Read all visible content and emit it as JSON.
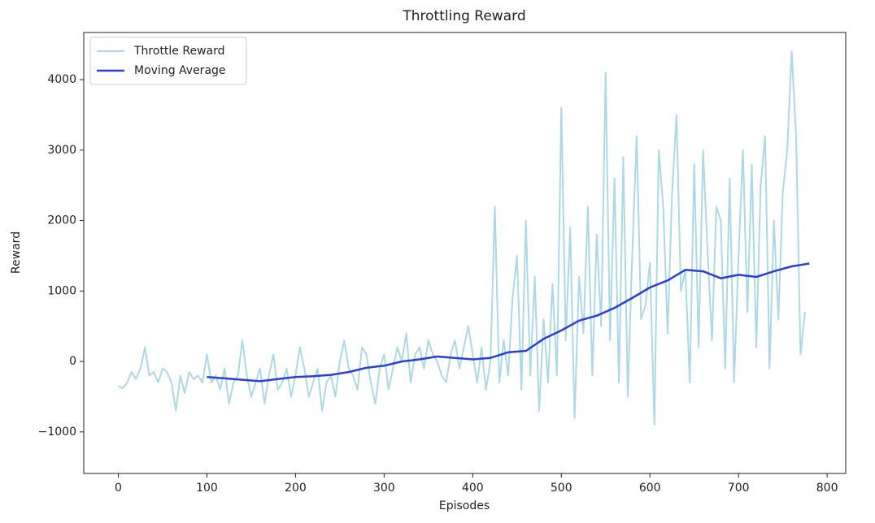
{
  "chart_data": {
    "type": "line",
    "title": "Throttling Reward",
    "x_label": "Episodes",
    "y_label": "Reward",
    "xlim": [
      -39,
      821
    ],
    "ylim": [
      -1590,
      4670
    ],
    "xticks": [
      0,
      100,
      200,
      300,
      400,
      500,
      600,
      700,
      800
    ],
    "yticks": [
      {
        "value": -1000,
        "label": "−1000"
      },
      0,
      1000,
      2000,
      3000,
      4000
    ],
    "grid": false,
    "legend": "upper left",
    "series": [
      {
        "name": "Throttle Reward",
        "color": "#add8e6",
        "width": 2,
        "x": [
          0,
          5,
          10,
          15,
          20,
          25,
          30,
          35,
          40,
          45,
          50,
          55,
          60,
          65,
          70,
          75,
          80,
          85,
          90,
          95,
          100,
          105,
          110,
          115,
          120,
          125,
          130,
          135,
          140,
          145,
          150,
          155,
          160,
          165,
          170,
          175,
          180,
          185,
          190,
          195,
          200,
          205,
          210,
          215,
          220,
          225,
          230,
          235,
          240,
          245,
          250,
          255,
          260,
          265,
          270,
          275,
          280,
          285,
          290,
          295,
          300,
          305,
          310,
          315,
          320,
          325,
          330,
          335,
          340,
          345,
          350,
          355,
          360,
          365,
          370,
          375,
          380,
          385,
          390,
          395,
          400,
          405,
          410,
          415,
          420,
          425,
          430,
          435,
          440,
          445,
          450,
          455,
          460,
          465,
          470,
          475,
          480,
          485,
          490,
          495,
          500,
          505,
          510,
          515,
          520,
          525,
          530,
          535,
          540,
          545,
          550,
          555,
          560,
          565,
          570,
          575,
          580,
          585,
          590,
          595,
          600,
          605,
          610,
          615,
          620,
          625,
          630,
          635,
          640,
          645,
          650,
          655,
          660,
          665,
          670,
          675,
          680,
          685,
          690,
          695,
          700,
          705,
          710,
          715,
          720,
          725,
          730,
          735,
          740,
          745,
          750,
          755,
          760,
          765,
          770,
          775
        ],
        "values": [
          -350,
          -380,
          -300,
          -150,
          -250,
          -100,
          200,
          -200,
          -150,
          -300,
          -100,
          -150,
          -300,
          -700,
          -200,
          -450,
          -150,
          -250,
          -200,
          -300,
          100,
          -300,
          -200,
          -400,
          -100,
          -600,
          -300,
          -200,
          300,
          -200,
          -500,
          -300,
          -100,
          -600,
          -200,
          100,
          -400,
          -300,
          -100,
          -500,
          -200,
          200,
          -100,
          -500,
          -300,
          -100,
          -700,
          -300,
          -200,
          -500,
          0,
          300,
          -100,
          -200,
          -400,
          200,
          100,
          -300,
          -600,
          -100,
          100,
          -400,
          -100,
          200,
          0,
          400,
          -300,
          100,
          200,
          -100,
          300,
          100,
          0,
          -200,
          -300,
          100,
          300,
          -100,
          200,
          500,
          100,
          -300,
          200,
          -400,
          0,
          2200,
          -300,
          300,
          -200,
          900,
          1500,
          -400,
          2000,
          -200,
          1200,
          -700,
          600,
          -300,
          1100,
          -200,
          3600,
          300,
          1900,
          -800,
          1200,
          400,
          2200,
          -200,
          1800,
          500,
          4100,
          300,
          2600,
          -300,
          2900,
          -500,
          1500,
          3200,
          600,
          800,
          1400,
          -900,
          3000,
          2200,
          400,
          2400,
          3500,
          1000,
          1300,
          -300,
          2800,
          200,
          3000,
          1600,
          300,
          2200,
          2000,
          -100,
          2600,
          -300,
          1500,
          3000,
          700,
          2800,
          200,
          2500,
          3200,
          -100,
          2000,
          600,
          2400,
          3000,
          4400,
          3200,
          100,
          700
        ]
      },
      {
        "name": "Moving Average",
        "color": "#2a3fd6",
        "width": 2.5,
        "x": [
          100,
          120,
          140,
          160,
          180,
          200,
          220,
          240,
          260,
          280,
          300,
          320,
          340,
          360,
          380,
          400,
          420,
          440,
          460,
          480,
          500,
          520,
          540,
          560,
          580,
          600,
          620,
          640,
          660,
          680,
          700,
          720,
          740,
          760,
          780
        ],
        "values": [
          -220,
          -240,
          -260,
          -280,
          -250,
          -220,
          -210,
          -190,
          -150,
          -90,
          -60,
          0,
          30,
          70,
          50,
          30,
          50,
          130,
          150,
          320,
          440,
          580,
          650,
          760,
          900,
          1050,
          1150,
          1300,
          1280,
          1180,
          1230,
          1200,
          1280,
          1350,
          1390
        ]
      }
    ]
  }
}
